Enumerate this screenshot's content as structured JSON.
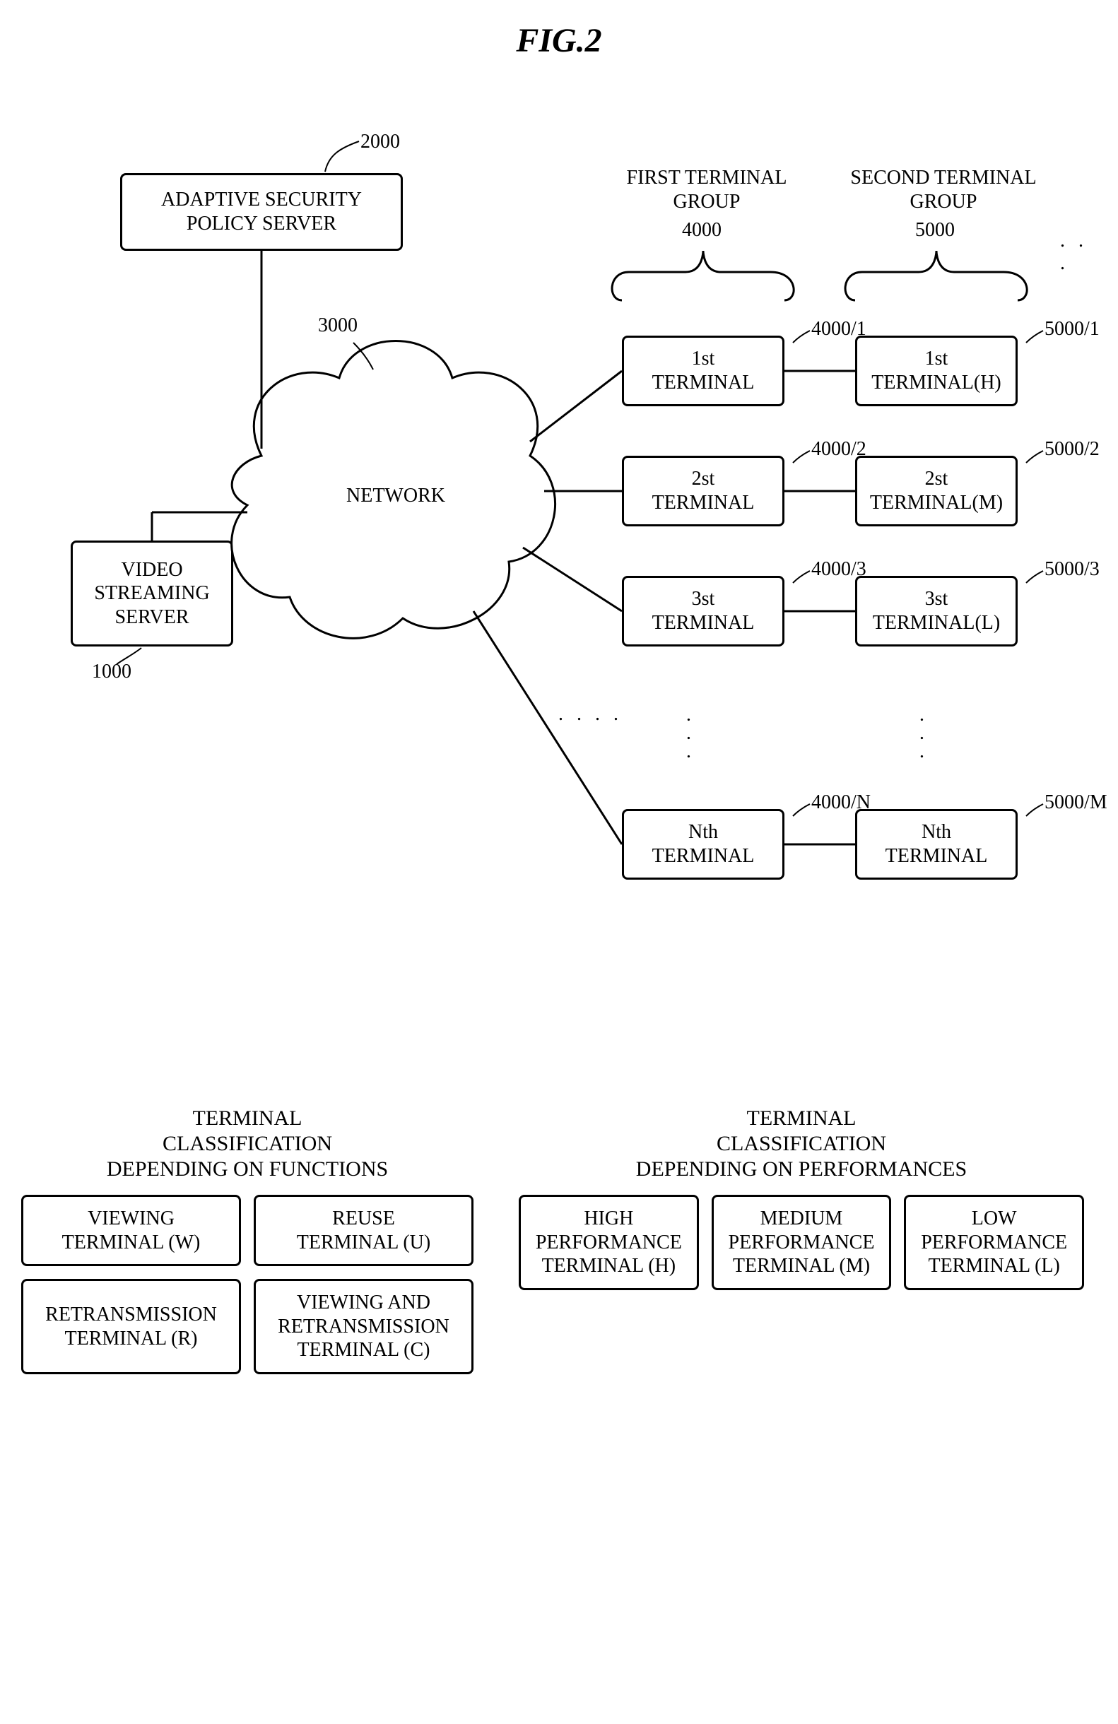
{
  "title": "FIG.2",
  "servers": {
    "policy": {
      "label": "ADAPTIVE SECURITY\nPOLICY SERVER",
      "ref": "2000"
    },
    "video": {
      "label": "VIDEO\nSTREAMING\nSERVER",
      "ref": "1000"
    }
  },
  "network": {
    "label": "NETWORK",
    "ref": "3000"
  },
  "group1": {
    "title": "FIRST TERMINAL\nGROUP",
    "ref": "4000",
    "items": [
      {
        "label": "1st\nTERMINAL",
        "ref": "4000/1"
      },
      {
        "label": "2st\nTERMINAL",
        "ref": "4000/2"
      },
      {
        "label": "3st\nTERMINAL",
        "ref": "4000/3"
      },
      {
        "label": "Nth\nTERMINAL",
        "ref": "4000/N"
      }
    ]
  },
  "group2": {
    "title": "SECOND TERMINAL\nGROUP",
    "ref": "5000",
    "items": [
      {
        "label": "1st\nTERMINAL(H)",
        "ref": "5000/1"
      },
      {
        "label": "2st\nTERMINAL(M)",
        "ref": "5000/2"
      },
      {
        "label": "3st\nTERMINAL(L)",
        "ref": "5000/3"
      },
      {
        "label": "Nth\nTERMINAL",
        "ref": "5000/M"
      }
    ]
  },
  "legend": {
    "functions": {
      "title": "TERMINAL\nCLASSIFICATION\nDEPENDING ON FUNCTIONS",
      "items": [
        "VIEWING\nTERMINAL (W)",
        "REUSE\nTERMINAL (U)",
        "RETRANSMISSION\nTERMINAL (R)",
        "VIEWING AND\nRETRANSMISSION\nTERMINAL (C)"
      ]
    },
    "performances": {
      "title": "TERMINAL\nCLASSIFICATION\nDEPENDING ON PERFORMANCES",
      "items": [
        "HIGH\nPERFORMANCE\nTERMINAL (H)",
        "MEDIUM\nPERFORMANCE\nTERMINAL (M)",
        "LOW\nPERFORMANCE\nTERMINAL (L)"
      ]
    }
  },
  "style": {
    "box_border": "#000000",
    "background": "#ffffff",
    "font_family": "Times New Roman, serif"
  }
}
